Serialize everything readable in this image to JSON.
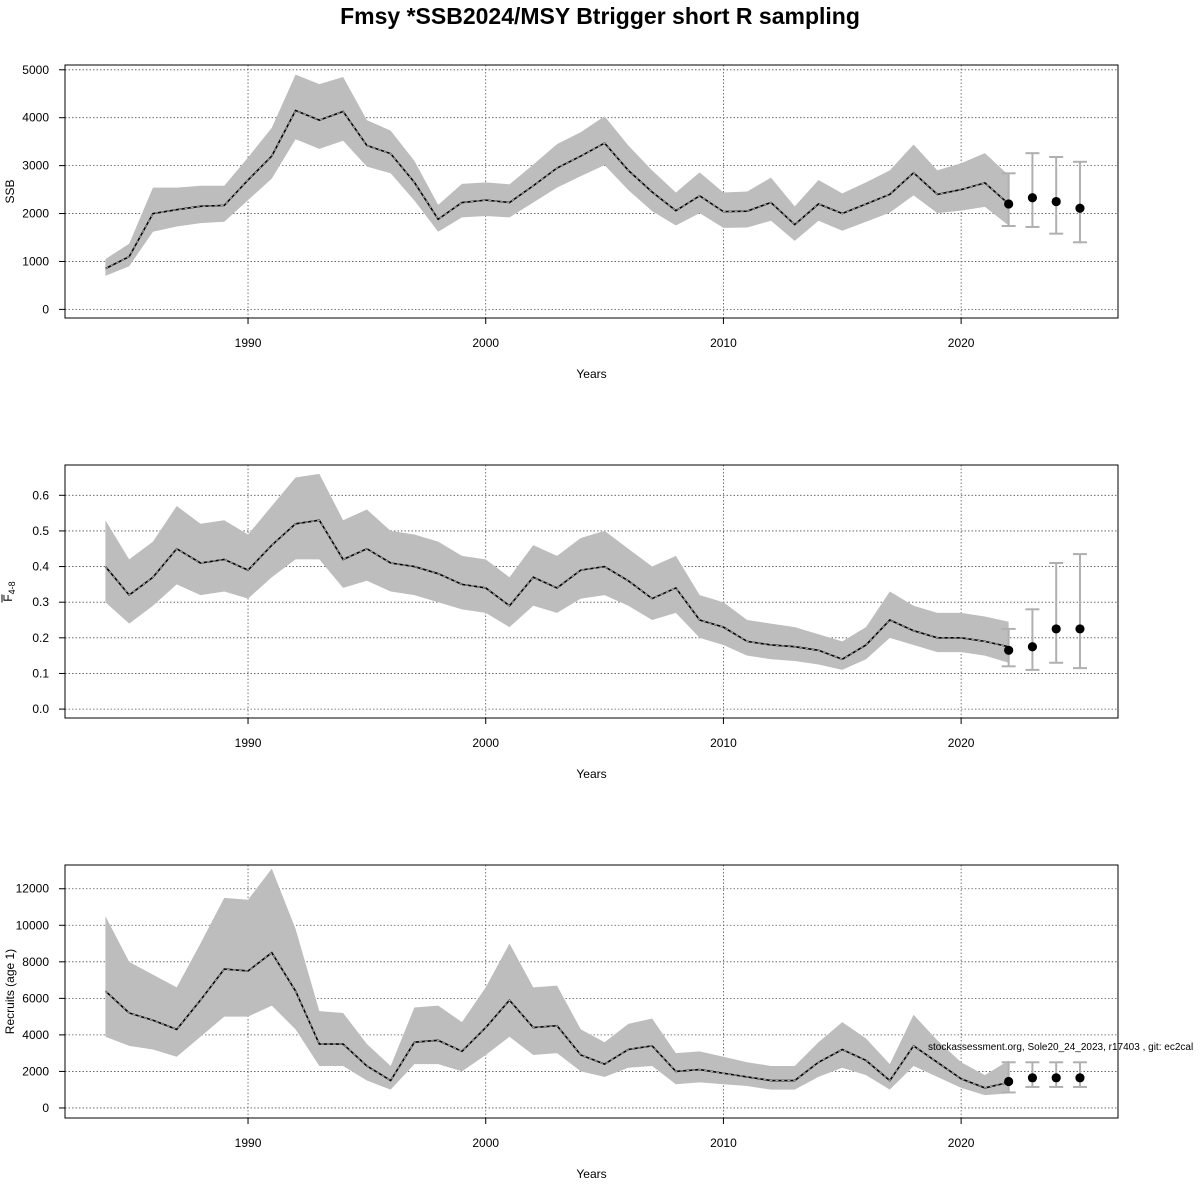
{
  "title": "Fmsy  *SSB2024/MSY Btrigger short R sampling",
  "footnote": "stockassessment.org, Sole20_24_2023, r17403 , git: ec2cal",
  "chart_data": [
    {
      "type": "line",
      "name": "ssb",
      "ylabel": "SSB",
      "ylabel_subscript": "",
      "xlabel": "Years",
      "xlim": [
        1982.3,
        2026.6
      ],
      "ylim": [
        -180,
        5100
      ],
      "x_ticks": [
        1990,
        2000,
        2010,
        2020
      ],
      "y_ticks": [
        0,
        1000,
        2000,
        3000,
        4000,
        5000
      ],
      "grid": true,
      "years": [
        1984,
        1985,
        1986,
        1987,
        1988,
        1989,
        1990,
        1991,
        1992,
        1993,
        1994,
        1995,
        1996,
        1997,
        1998,
        1999,
        2000,
        2001,
        2002,
        2003,
        2004,
        2005,
        2006,
        2007,
        2008,
        2009,
        2010,
        2011,
        2012,
        2013,
        2014,
        2015,
        2016,
        2017,
        2018,
        2019,
        2020,
        2021,
        2022
      ],
      "estimate": [
        850,
        1100,
        2000,
        2080,
        2150,
        2170,
        2700,
        3200,
        4150,
        3950,
        4130,
        3420,
        3250,
        2650,
        1880,
        2230,
        2280,
        2230,
        2580,
        2950,
        3200,
        3470,
        2900,
        2450,
        2060,
        2370,
        2040,
        2050,
        2230,
        1770,
        2200,
        2000,
        2200,
        2400,
        2850,
        2400,
        2500,
        2640,
        2200
      ],
      "lower": [
        700,
        900,
        1620,
        1730,
        1800,
        1830,
        2280,
        2730,
        3550,
        3350,
        3520,
        2980,
        2840,
        2270,
        1620,
        1920,
        1950,
        1920,
        2230,
        2540,
        2780,
        3010,
        2490,
        2050,
        1750,
        2010,
        1700,
        1710,
        1850,
        1430,
        1850,
        1640,
        1830,
        2020,
        2380,
        2010,
        2060,
        2140,
        1750
      ],
      "upper": [
        1050,
        1370,
        2540,
        2540,
        2580,
        2580,
        3170,
        3790,
        4900,
        4700,
        4850,
        3950,
        3730,
        3100,
        2180,
        2620,
        2650,
        2610,
        3020,
        3450,
        3700,
        4030,
        3420,
        2900,
        2440,
        2860,
        2440,
        2460,
        2750,
        2150,
        2700,
        2420,
        2650,
        2900,
        3440,
        2900,
        3050,
        3260,
        2800
      ],
      "forecast": {
        "years": [
          2022,
          2023,
          2024,
          2025
        ],
        "median": [
          2200,
          2330,
          2250,
          2110
        ],
        "lower": [
          1740,
          1720,
          1580,
          1400
        ],
        "upper": [
          2840,
          3260,
          3180,
          3080
        ]
      }
    },
    {
      "type": "line",
      "name": "fbar",
      "ylabel": "F",
      "ylabel_subscript": "4-8",
      "xlabel": "Years",
      "xlim": [
        1982.3,
        2026.6
      ],
      "ylim": [
        -0.025,
        0.685
      ],
      "x_ticks": [
        1990,
        2000,
        2010,
        2020
      ],
      "y_ticks": [
        0.0,
        0.1,
        0.2,
        0.3,
        0.4,
        0.5,
        0.6
      ],
      "y_tick_labels": [
        "0.0",
        "0.1",
        "0.2",
        "0.3",
        "0.4",
        "0.5",
        "0.6"
      ],
      "grid": true,
      "years": [
        1984,
        1985,
        1986,
        1987,
        1988,
        1989,
        1990,
        1991,
        1992,
        1993,
        1994,
        1995,
        1996,
        1997,
        1998,
        1999,
        2000,
        2001,
        2002,
        2003,
        2004,
        2005,
        2006,
        2007,
        2008,
        2009,
        2010,
        2011,
        2012,
        2013,
        2014,
        2015,
        2016,
        2017,
        2018,
        2019,
        2020,
        2021,
        2022
      ],
      "estimate": [
        0.4,
        0.32,
        0.37,
        0.45,
        0.41,
        0.42,
        0.39,
        0.46,
        0.52,
        0.53,
        0.42,
        0.45,
        0.41,
        0.4,
        0.38,
        0.35,
        0.34,
        0.29,
        0.37,
        0.34,
        0.39,
        0.4,
        0.36,
        0.31,
        0.34,
        0.25,
        0.23,
        0.19,
        0.18,
        0.175,
        0.165,
        0.14,
        0.18,
        0.25,
        0.22,
        0.2,
        0.2,
        0.19,
        0.175
      ],
      "lower": [
        0.3,
        0.24,
        0.29,
        0.35,
        0.32,
        0.33,
        0.31,
        0.37,
        0.42,
        0.42,
        0.34,
        0.36,
        0.33,
        0.32,
        0.3,
        0.28,
        0.27,
        0.23,
        0.29,
        0.27,
        0.31,
        0.32,
        0.29,
        0.25,
        0.27,
        0.2,
        0.18,
        0.15,
        0.14,
        0.135,
        0.125,
        0.11,
        0.14,
        0.2,
        0.18,
        0.16,
        0.16,
        0.15,
        0.13
      ],
      "upper": [
        0.53,
        0.42,
        0.47,
        0.57,
        0.52,
        0.53,
        0.49,
        0.57,
        0.65,
        0.66,
        0.53,
        0.56,
        0.5,
        0.49,
        0.47,
        0.43,
        0.42,
        0.37,
        0.46,
        0.43,
        0.48,
        0.5,
        0.45,
        0.4,
        0.43,
        0.32,
        0.3,
        0.25,
        0.24,
        0.23,
        0.21,
        0.19,
        0.23,
        0.33,
        0.29,
        0.27,
        0.27,
        0.26,
        0.245
      ],
      "forecast": {
        "years": [
          2022,
          2023,
          2024,
          2025
        ],
        "median": [
          0.165,
          0.175,
          0.225,
          0.225
        ],
        "lower": [
          0.12,
          0.11,
          0.13,
          0.115
        ],
        "upper": [
          0.225,
          0.28,
          0.41,
          0.435
        ]
      }
    },
    {
      "type": "line",
      "name": "recruits",
      "ylabel": "Recruits (age 1)",
      "ylabel_subscript": "",
      "xlabel": "Years",
      "xlim": [
        1982.3,
        2026.6
      ],
      "ylim": [
        -550,
        13300
      ],
      "x_ticks": [
        1990,
        2000,
        2010,
        2020
      ],
      "y_ticks": [
        0,
        2000,
        4000,
        6000,
        8000,
        10000,
        12000
      ],
      "grid": true,
      "years": [
        1984,
        1985,
        1986,
        1987,
        1988,
        1989,
        1990,
        1991,
        1992,
        1993,
        1994,
        1995,
        1996,
        1997,
        1998,
        1999,
        2000,
        2001,
        2002,
        2003,
        2004,
        2005,
        2006,
        2007,
        2008,
        2009,
        2010,
        2011,
        2012,
        2013,
        2014,
        2015,
        2016,
        2017,
        2018,
        2019,
        2020,
        2021,
        2022
      ],
      "estimate": [
        6400,
        5200,
        4800,
        4300,
        5900,
        7600,
        7500,
        8500,
        6400,
        3500,
        3500,
        2300,
        1500,
        3600,
        3700,
        3100,
        4400,
        5900,
        4400,
        4500,
        2900,
        2400,
        3200,
        3400,
        2000,
        2100,
        1900,
        1700,
        1500,
        1500,
        2500,
        3200,
        2600,
        1500,
        3400,
        2500,
        1600,
        1100,
        1400
      ],
      "lower": [
        3900,
        3400,
        3200,
        2800,
        3900,
        5000,
        5000,
        5600,
        4300,
        2300,
        2300,
        1500,
        1000,
        2400,
        2400,
        2000,
        2900,
        3900,
        2900,
        3000,
        2000,
        1700,
        2200,
        2300,
        1300,
        1400,
        1300,
        1200,
        1000,
        1000,
        1700,
        2200,
        1800,
        1000,
        2300,
        1700,
        1100,
        700,
        800
      ],
      "upper": [
        10500,
        8000,
        7300,
        6600,
        9000,
        11500,
        11400,
        13100,
        9800,
        5300,
        5200,
        3500,
        2300,
        5500,
        5600,
        4700,
        6600,
        9000,
        6600,
        6700,
        4300,
        3600,
        4600,
        4900,
        3000,
        3100,
        2800,
        2500,
        2300,
        2300,
        3600,
        4700,
        3800,
        2400,
        5100,
        3700,
        2500,
        1800,
        2600
      ],
      "forecast": {
        "years": [
          2022,
          2023,
          2024,
          2025
        ],
        "median": [
          1450,
          1650,
          1650,
          1650
        ],
        "lower": [
          850,
          1150,
          1150,
          1150
        ],
        "upper": [
          2500,
          2500,
          2500,
          2500
        ]
      }
    }
  ]
}
